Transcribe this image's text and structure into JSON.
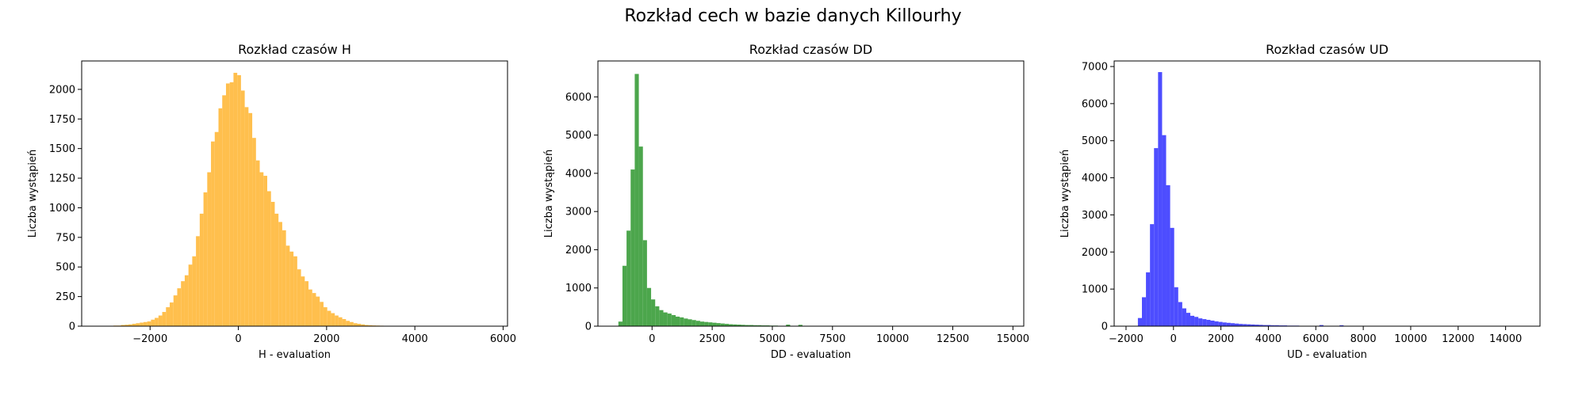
{
  "suptitle": "Rozkład cech w bazie danych Killourhy",
  "chart_data": [
    {
      "type": "bar",
      "title": "Rozkład czasów H",
      "xlabel": "H - evaluation",
      "ylabel": "Liczba wystąpień",
      "color": "#ffbf4d",
      "xlim": [
        -3550,
        6100
      ],
      "ylim": [
        0,
        2240
      ],
      "xticks": [
        -2000,
        0,
        2000,
        4000,
        6000
      ],
      "yticks": [
        0,
        250,
        500,
        750,
        1000,
        1250,
        1500,
        1750,
        2000
      ],
      "bin_start": -3000,
      "bin_width": 85,
      "counts": [
        0,
        0,
        5,
        5,
        10,
        12,
        15,
        20,
        25,
        30,
        35,
        40,
        55,
        70,
        90,
        120,
        160,
        200,
        260,
        320,
        380,
        430,
        520,
        590,
        760,
        950,
        1130,
        1300,
        1560,
        1640,
        1840,
        1950,
        2050,
        2060,
        2140,
        2120,
        1990,
        1850,
        1800,
        1590,
        1400,
        1300,
        1270,
        1140,
        1050,
        950,
        880,
        810,
        680,
        630,
        590,
        480,
        420,
        380,
        310,
        280,
        250,
        205,
        160,
        130,
        110,
        90,
        75,
        60,
        45,
        35,
        25,
        20,
        15,
        10,
        8,
        6,
        5,
        4,
        3,
        2,
        1,
        1
      ]
    },
    {
      "type": "bar",
      "title": "Rozkład czasów DD",
      "xlabel": "DD - evaluation",
      "ylabel": "Liczba wystąpień",
      "color": "#4ca64c",
      "xlim": [
        -2250,
        15450
      ],
      "ylim": [
        0,
        6940
      ],
      "xticks": [
        0,
        2500,
        5000,
        7500,
        10000,
        12500,
        15000
      ],
      "yticks": [
        0,
        1000,
        2000,
        3000,
        4000,
        5000,
        6000
      ],
      "bin_start": -1400,
      "bin_width": 170,
      "counts": [
        120,
        1580,
        2500,
        4100,
        6600,
        4700,
        2250,
        1000,
        700,
        520,
        420,
        360,
        330,
        290,
        250,
        230,
        200,
        180,
        160,
        140,
        120,
        110,
        100,
        90,
        80,
        70,
        60,
        50,
        45,
        40,
        35,
        30,
        30,
        25,
        25,
        20,
        20,
        15,
        15,
        10,
        10,
        40,
        10,
        10,
        35,
        10,
        5,
        5,
        5,
        5,
        5,
        5,
        5,
        5,
        3,
        3,
        3,
        3,
        3,
        2,
        2,
        2,
        2,
        2,
        2,
        1,
        1,
        1,
        1,
        1,
        1,
        1,
        1,
        1,
        1,
        1,
        1,
        1,
        1,
        1,
        1,
        1,
        1,
        1,
        1,
        1,
        1,
        1,
        1,
        1,
        1,
        1,
        1,
        1,
        1,
        1
      ]
    },
    {
      "type": "bar",
      "title": "Rozkład czasów UD",
      "xlabel": "UD - evaluation",
      "ylabel": "Liczba wystąpień",
      "color": "#4d4dff",
      "xlim": [
        -2500,
        15450
      ],
      "ylim": [
        0,
        7150
      ],
      "xticks": [
        -2000,
        0,
        2000,
        4000,
        6000,
        8000,
        10000,
        12000,
        14000
      ],
      "yticks": [
        0,
        1000,
        2000,
        3000,
        4000,
        5000,
        6000,
        7000
      ],
      "bin_start": -1500,
      "bin_width": 170,
      "counts": [
        220,
        780,
        1450,
        2750,
        4800,
        6850,
        5150,
        3800,
        2650,
        1050,
        650,
        480,
        360,
        280,
        250,
        210,
        190,
        170,
        150,
        130,
        115,
        100,
        90,
        80,
        70,
        60,
        55,
        50,
        45,
        40,
        35,
        30,
        30,
        25,
        25,
        20,
        20,
        15,
        15,
        15,
        10,
        10,
        10,
        10,
        10,
        30,
        10,
        5,
        5,
        5,
        25,
        5,
        5,
        5,
        5,
        5,
        3,
        3,
        3,
        3,
        3,
        2,
        2,
        2,
        2,
        2,
        1,
        1,
        1,
        1,
        1,
        1,
        1,
        1,
        1,
        1,
        1,
        1,
        1,
        1,
        1,
        1,
        1,
        1,
        1,
        1,
        1,
        1,
        1,
        1,
        1,
        1,
        1,
        1
      ]
    }
  ]
}
